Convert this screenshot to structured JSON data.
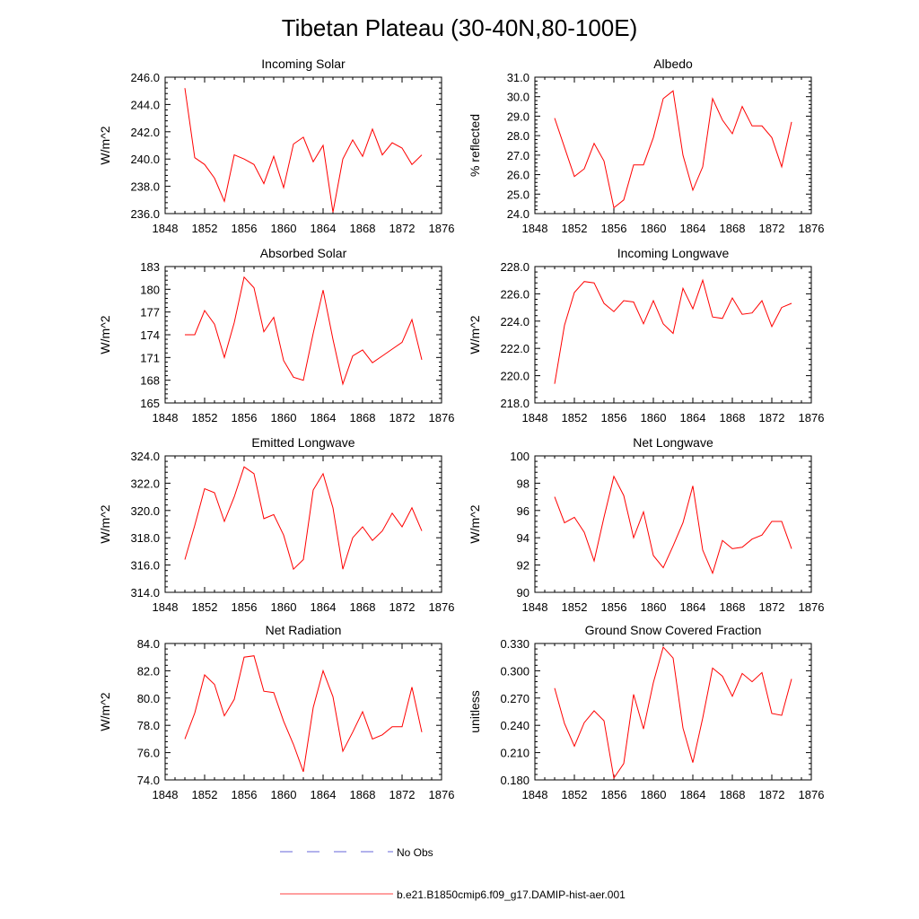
{
  "figure": {
    "title": "Tibetan Plateau (30-40N,80-100E)"
  },
  "legend": {
    "entries": [
      {
        "label": "No Obs",
        "color": "#3333cc",
        "dashed": true
      },
      {
        "label": "b.e21.B1850cmip6.f09_g17.DAMIP-hist-aer.001",
        "color": "#ff0000",
        "dashed": false
      }
    ]
  },
  "chart_data": [
    {
      "type": "line",
      "title": "Incoming Solar",
      "ylabel": "W/m^2",
      "xlim": [
        1848,
        1876
      ],
      "x_ticks": [
        "1848",
        "1852",
        "1856",
        "1860",
        "1864",
        "1868",
        "1872",
        "1876"
      ],
      "ylim": [
        236.0,
        246.0
      ],
      "y_ticks": [
        "236.0",
        "238.0",
        "240.0",
        "242.0",
        "244.0",
        "246.0"
      ],
      "grid": false,
      "series": [
        {
          "name": "b.e21.B1850cmip6.f09_g17.DAMIP-hist-aer.001",
          "color": "#ff0000",
          "x": [
            1850,
            1851,
            1852,
            1853,
            1854,
            1855,
            1856,
            1857,
            1858,
            1859,
            1860,
            1861,
            1862,
            1863,
            1864,
            1865,
            1866,
            1867,
            1868,
            1869,
            1870,
            1871,
            1872,
            1873,
            1874
          ],
          "y": [
            245.2,
            240.1,
            239.6,
            238.6,
            236.9,
            240.3,
            240.0,
            239.6,
            238.2,
            240.2,
            237.9,
            241.1,
            241.6,
            239.8,
            241.0,
            236.1,
            240.0,
            241.4,
            240.2,
            242.2,
            240.3,
            241.2,
            240.8,
            239.6,
            240.3
          ]
        }
      ]
    },
    {
      "type": "line",
      "title": "Albedo",
      "ylabel": "% reflected",
      "xlim": [
        1848,
        1876
      ],
      "x_ticks": [
        "1848",
        "1852",
        "1856",
        "1860",
        "1864",
        "1868",
        "1872",
        "1876"
      ],
      "ylim": [
        24.0,
        31.0
      ],
      "y_ticks": [
        "24.0",
        "25.0",
        "26.0",
        "27.0",
        "28.0",
        "29.0",
        "30.0",
        "31.0"
      ],
      "grid": false,
      "series": [
        {
          "name": "b.e21.B1850cmip6.f09_g17.DAMIP-hist-aer.001",
          "color": "#ff0000",
          "x": [
            1850,
            1851,
            1852,
            1853,
            1854,
            1855,
            1856,
            1857,
            1858,
            1859,
            1860,
            1861,
            1862,
            1863,
            1864,
            1865,
            1866,
            1867,
            1868,
            1869,
            1870,
            1871,
            1872,
            1873,
            1874
          ],
          "y": [
            28.9,
            27.4,
            25.9,
            26.3,
            27.6,
            26.7,
            24.3,
            24.7,
            26.5,
            26.5,
            27.9,
            29.9,
            30.3,
            27.0,
            25.2,
            26.4,
            29.9,
            28.8,
            28.1,
            29.5,
            28.5,
            28.5,
            27.9,
            26.4,
            28.7
          ]
        }
      ]
    },
    {
      "type": "line",
      "title": "Absorbed Solar",
      "ylabel": "W/m^2",
      "xlim": [
        1848,
        1876
      ],
      "x_ticks": [
        "1848",
        "1852",
        "1856",
        "1860",
        "1864",
        "1868",
        "1872",
        "1876"
      ],
      "ylim": [
        165,
        183
      ],
      "y_ticks": [
        "165",
        "168",
        "171",
        "174",
        "177",
        "180",
        "183"
      ],
      "grid": false,
      "series": [
        {
          "name": "b.e21.B1850cmip6.f09_g17.DAMIP-hist-aer.001",
          "color": "#ff0000",
          "x": [
            1850,
            1851,
            1852,
            1853,
            1854,
            1855,
            1856,
            1857,
            1858,
            1859,
            1860,
            1861,
            1862,
            1863,
            1864,
            1865,
            1866,
            1867,
            1868,
            1869,
            1870,
            1871,
            1872,
            1873,
            1874
          ],
          "y": [
            174.0,
            174.0,
            177.2,
            175.4,
            171.0,
            175.6,
            181.6,
            180.2,
            174.4,
            176.3,
            170.6,
            168.4,
            168.0,
            174.2,
            179.9,
            173.4,
            167.5,
            171.2,
            172.0,
            170.3,
            171.2,
            172.1,
            173.0,
            176.0,
            170.7
          ]
        }
      ]
    },
    {
      "type": "line",
      "title": "Incoming Longwave",
      "ylabel": "W/m^2",
      "xlim": [
        1848,
        1876
      ],
      "x_ticks": [
        "1848",
        "1852",
        "1856",
        "1860",
        "1864",
        "1868",
        "1872",
        "1876"
      ],
      "ylim": [
        218.0,
        228.0
      ],
      "y_ticks": [
        "218.0",
        "220.0",
        "222.0",
        "224.0",
        "226.0",
        "228.0"
      ],
      "grid": false,
      "series": [
        {
          "name": "b.e21.B1850cmip6.f09_g17.DAMIP-hist-aer.001",
          "color": "#ff0000",
          "x": [
            1850,
            1851,
            1852,
            1853,
            1854,
            1855,
            1856,
            1857,
            1858,
            1859,
            1860,
            1861,
            1862,
            1863,
            1864,
            1865,
            1866,
            1867,
            1868,
            1869,
            1870,
            1871,
            1872,
            1873,
            1874
          ],
          "y": [
            219.4,
            223.7,
            226.1,
            226.9,
            226.8,
            225.3,
            224.7,
            225.5,
            225.4,
            223.8,
            225.5,
            223.8,
            223.1,
            226.4,
            224.9,
            227.0,
            224.3,
            224.2,
            225.7,
            224.5,
            224.6,
            225.5,
            223.6,
            225.0,
            225.3
          ]
        }
      ]
    },
    {
      "type": "line",
      "title": "Emitted Longwave",
      "ylabel": "W/m^2",
      "xlim": [
        1848,
        1876
      ],
      "x_ticks": [
        "1848",
        "1852",
        "1856",
        "1860",
        "1864",
        "1868",
        "1872",
        "1876"
      ],
      "ylim": [
        314.0,
        324.0
      ],
      "y_ticks": [
        "314.0",
        "316.0",
        "318.0",
        "320.0",
        "322.0",
        "324.0"
      ],
      "grid": false,
      "series": [
        {
          "name": "b.e21.B1850cmip6.f09_g17.DAMIP-hist-aer.001",
          "color": "#ff0000",
          "x": [
            1850,
            1851,
            1852,
            1853,
            1854,
            1855,
            1856,
            1857,
            1858,
            1859,
            1860,
            1861,
            1862,
            1863,
            1864,
            1865,
            1866,
            1867,
            1868,
            1869,
            1870,
            1871,
            1872,
            1873,
            1874
          ],
          "y": [
            316.4,
            318.9,
            321.6,
            321.3,
            319.2,
            321.0,
            323.2,
            322.7,
            319.4,
            319.7,
            318.2,
            315.7,
            316.4,
            321.5,
            322.7,
            320.2,
            315.7,
            318.0,
            318.8,
            317.8,
            318.5,
            319.8,
            318.8,
            320.2,
            318.5
          ]
        }
      ]
    },
    {
      "type": "line",
      "title": "Net Longwave",
      "ylabel": "W/m^2",
      "xlim": [
        1848,
        1876
      ],
      "x_ticks": [
        "1848",
        "1852",
        "1856",
        "1860",
        "1864",
        "1868",
        "1872",
        "1876"
      ],
      "ylim": [
        90,
        100
      ],
      "y_ticks": [
        "90",
        "92",
        "94",
        "96",
        "98",
        "100"
      ],
      "grid": false,
      "series": [
        {
          "name": "b.e21.B1850cmip6.f09_g17.DAMIP-hist-aer.001",
          "color": "#ff0000",
          "x": [
            1850,
            1851,
            1852,
            1853,
            1854,
            1855,
            1856,
            1857,
            1858,
            1859,
            1860,
            1861,
            1862,
            1863,
            1864,
            1865,
            1866,
            1867,
            1868,
            1869,
            1870,
            1871,
            1872,
            1873,
            1874
          ],
          "y": [
            97.0,
            95.1,
            95.5,
            94.4,
            92.3,
            95.5,
            98.5,
            97.1,
            94.0,
            95.9,
            92.7,
            91.8,
            93.4,
            95.1,
            97.8,
            93.1,
            91.4,
            93.8,
            93.2,
            93.3,
            93.9,
            94.2,
            95.2,
            95.2,
            93.2
          ]
        }
      ]
    },
    {
      "type": "line",
      "title": "Net Radiation",
      "ylabel": "W/m^2",
      "xlim": [
        1848,
        1876
      ],
      "x_ticks": [
        "1848",
        "1852",
        "1856",
        "1860",
        "1864",
        "1868",
        "1872",
        "1876"
      ],
      "ylim": [
        74.0,
        84.0
      ],
      "y_ticks": [
        "74.0",
        "76.0",
        "78.0",
        "80.0",
        "82.0",
        "84.0"
      ],
      "grid": false,
      "series": [
        {
          "name": "b.e21.B1850cmip6.f09_g17.DAMIP-hist-aer.001",
          "color": "#ff0000",
          "x": [
            1850,
            1851,
            1852,
            1853,
            1854,
            1855,
            1856,
            1857,
            1858,
            1859,
            1860,
            1861,
            1862,
            1863,
            1864,
            1865,
            1866,
            1867,
            1868,
            1869,
            1870,
            1871,
            1872,
            1873,
            1874
          ],
          "y": [
            77.0,
            78.9,
            81.7,
            81.0,
            78.7,
            79.9,
            83.0,
            83.1,
            80.5,
            80.4,
            78.3,
            76.6,
            74.6,
            79.3,
            82.0,
            80.1,
            76.1,
            77.5,
            79.0,
            77.0,
            77.3,
            77.9,
            77.9,
            80.8,
            77.5
          ]
        }
      ]
    },
    {
      "type": "line",
      "title": "Ground Snow Covered Fraction",
      "ylabel": "unitless",
      "xlim": [
        1848,
        1876
      ],
      "x_ticks": [
        "1848",
        "1852",
        "1856",
        "1860",
        "1864",
        "1868",
        "1872",
        "1876"
      ],
      "ylim": [
        0.18,
        0.33
      ],
      "y_ticks": [
        "0.180",
        "0.210",
        "0.240",
        "0.270",
        "0.300",
        "0.330"
      ],
      "grid": false,
      "series": [
        {
          "name": "b.e21.B1850cmip6.f09_g17.DAMIP-hist-aer.001",
          "color": "#ff0000",
          "x": [
            1850,
            1851,
            1852,
            1853,
            1854,
            1855,
            1856,
            1857,
            1858,
            1859,
            1860,
            1861,
            1862,
            1863,
            1864,
            1865,
            1866,
            1867,
            1868,
            1869,
            1870,
            1871,
            1872,
            1873,
            1874
          ],
          "y": [
            0.281,
            0.242,
            0.217,
            0.243,
            0.256,
            0.245,
            0.182,
            0.198,
            0.274,
            0.236,
            0.287,
            0.326,
            0.314,
            0.237,
            0.199,
            0.248,
            0.303,
            0.294,
            0.272,
            0.297,
            0.288,
            0.298,
            0.253,
            0.251,
            0.291
          ]
        }
      ]
    }
  ]
}
